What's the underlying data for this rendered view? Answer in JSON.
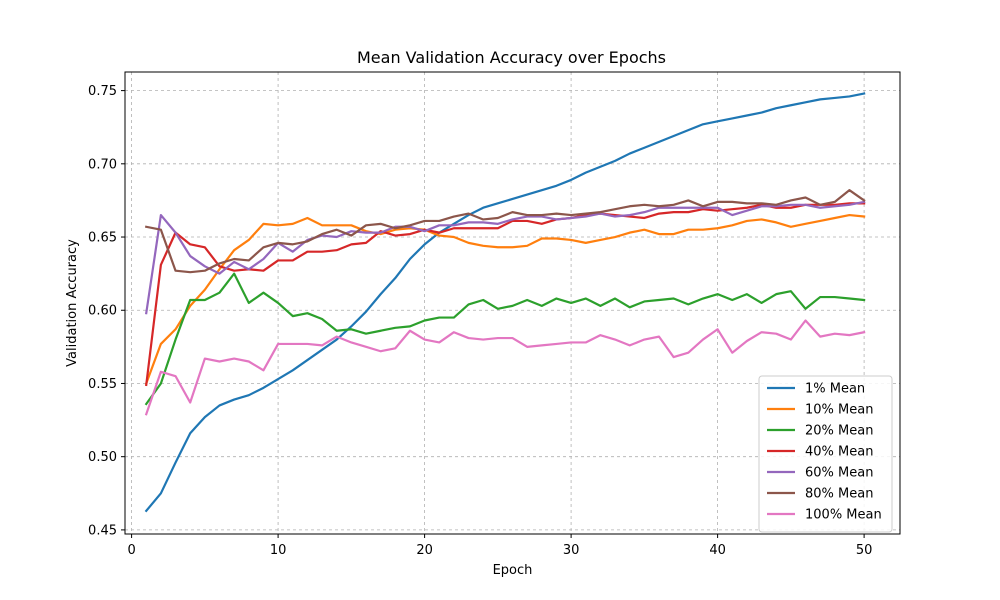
{
  "chart_data": {
    "type": "line",
    "title": "Mean Validation Accuracy over Epochs",
    "xlabel": "Epoch",
    "ylabel": "Validation Accuracy",
    "xlim": [
      -0.45,
      52.45
    ],
    "ylim": [
      0.4472,
      0.7627
    ],
    "xticks": [
      0,
      10,
      20,
      30,
      40,
      50
    ],
    "yticks": [
      0.45,
      0.5,
      0.55,
      0.6,
      0.65,
      0.7,
      0.75
    ],
    "ytick_labels": [
      "0.45",
      "0.50",
      "0.55",
      "0.60",
      "0.65",
      "0.70",
      "0.75"
    ],
    "grid": true,
    "legend_position": "lower right",
    "x": [
      1,
      2,
      3,
      4,
      5,
      6,
      7,
      8,
      9,
      10,
      11,
      12,
      13,
      14,
      15,
      16,
      17,
      18,
      19,
      20,
      21,
      22,
      23,
      24,
      25,
      26,
      27,
      28,
      29,
      30,
      31,
      32,
      33,
      34,
      35,
      36,
      37,
      38,
      39,
      40,
      41,
      42,
      43,
      44,
      45,
      46,
      47,
      48,
      49,
      50
    ],
    "series": [
      {
        "name": "1% Mean",
        "color": "#1f77b4",
        "values": [
          0.463,
          0.475,
          0.496,
          0.516,
          0.527,
          0.535,
          0.539,
          0.542,
          0.547,
          0.553,
          0.559,
          0.566,
          0.573,
          0.58,
          0.589,
          0.599,
          0.611,
          0.622,
          0.635,
          0.645,
          0.653,
          0.659,
          0.665,
          0.67,
          0.673,
          0.676,
          0.679,
          0.682,
          0.685,
          0.689,
          0.694,
          0.698,
          0.702,
          0.707,
          0.711,
          0.715,
          0.719,
          0.723,
          0.727,
          0.729,
          0.731,
          0.733,
          0.735,
          0.738,
          0.74,
          0.742,
          0.744,
          0.745,
          0.746,
          0.748
        ]
      },
      {
        "name": "10% Mean",
        "color": "#ff7f0e",
        "values": [
          0.55,
          0.577,
          0.587,
          0.603,
          0.614,
          0.628,
          0.641,
          0.648,
          0.659,
          0.658,
          0.659,
          0.663,
          0.658,
          0.658,
          0.658,
          0.654,
          0.652,
          0.655,
          0.656,
          0.655,
          0.651,
          0.65,
          0.646,
          0.644,
          0.643,
          0.643,
          0.644,
          0.649,
          0.649,
          0.648,
          0.646,
          0.648,
          0.65,
          0.653,
          0.655,
          0.652,
          0.652,
          0.655,
          0.655,
          0.656,
          0.658,
          0.661,
          0.662,
          0.66,
          0.657,
          0.659,
          0.661,
          0.663,
          0.665,
          0.664
        ]
      },
      {
        "name": "20% Mean",
        "color": "#2ca02c",
        "values": [
          0.536,
          0.55,
          0.58,
          0.607,
          0.607,
          0.612,
          0.625,
          0.605,
          0.612,
          0.605,
          0.596,
          0.598,
          0.594,
          0.586,
          0.587,
          0.584,
          0.586,
          0.588,
          0.589,
          0.593,
          0.595,
          0.595,
          0.604,
          0.607,
          0.601,
          0.603,
          0.607,
          0.603,
          0.608,
          0.605,
          0.608,
          0.603,
          0.608,
          0.602,
          0.606,
          0.607,
          0.608,
          0.604,
          0.608,
          0.611,
          0.607,
          0.611,
          0.605,
          0.611,
          0.613,
          0.601,
          0.609,
          0.609,
          0.608,
          0.607
        ]
      },
      {
        "name": "40% Mean",
        "color": "#d62728",
        "values": [
          0.549,
          0.631,
          0.653,
          0.645,
          0.643,
          0.63,
          0.627,
          0.628,
          0.627,
          0.634,
          0.634,
          0.64,
          0.64,
          0.641,
          0.645,
          0.646,
          0.654,
          0.651,
          0.652,
          0.655,
          0.653,
          0.656,
          0.656,
          0.656,
          0.656,
          0.661,
          0.661,
          0.659,
          0.662,
          0.663,
          0.665,
          0.666,
          0.665,
          0.664,
          0.663,
          0.666,
          0.667,
          0.667,
          0.669,
          0.668,
          0.669,
          0.67,
          0.672,
          0.67,
          0.67,
          0.672,
          0.672,
          0.672,
          0.673,
          0.673
        ]
      },
      {
        "name": "60% Mean",
        "color": "#9467bd",
        "values": [
          0.598,
          0.665,
          0.653,
          0.637,
          0.63,
          0.625,
          0.633,
          0.628,
          0.635,
          0.646,
          0.64,
          0.648,
          0.651,
          0.65,
          0.654,
          0.653,
          0.653,
          0.657,
          0.657,
          0.654,
          0.658,
          0.658,
          0.66,
          0.66,
          0.659,
          0.662,
          0.664,
          0.664,
          0.662,
          0.663,
          0.664,
          0.666,
          0.664,
          0.665,
          0.667,
          0.67,
          0.67,
          0.67,
          0.67,
          0.67,
          0.665,
          0.668,
          0.671,
          0.671,
          0.672,
          0.672,
          0.67,
          0.671,
          0.672,
          0.674
        ]
      },
      {
        "name": "80% Mean",
        "color": "#8c564b",
        "values": [
          0.657,
          0.655,
          0.627,
          0.626,
          0.627,
          0.632,
          0.635,
          0.634,
          0.643,
          0.646,
          0.645,
          0.647,
          0.652,
          0.655,
          0.651,
          0.658,
          0.659,
          0.656,
          0.658,
          0.661,
          0.661,
          0.664,
          0.666,
          0.662,
          0.663,
          0.667,
          0.665,
          0.665,
          0.666,
          0.665,
          0.666,
          0.667,
          0.669,
          0.671,
          0.672,
          0.671,
          0.672,
          0.675,
          0.671,
          0.674,
          0.674,
          0.673,
          0.673,
          0.672,
          0.675,
          0.677,
          0.672,
          0.674,
          0.682,
          0.675
        ]
      },
      {
        "name": "100% Mean",
        "color": "#e377c2",
        "values": [
          0.529,
          0.558,
          0.555,
          0.537,
          0.567,
          0.565,
          0.567,
          0.565,
          0.559,
          0.577,
          0.577,
          0.577,
          0.576,
          0.582,
          0.578,
          0.575,
          0.572,
          0.574,
          0.586,
          0.58,
          0.578,
          0.585,
          0.581,
          0.58,
          0.581,
          0.581,
          0.575,
          0.576,
          0.577,
          0.578,
          0.578,
          0.583,
          0.58,
          0.576,
          0.58,
          0.582,
          0.568,
          0.571,
          0.58,
          0.587,
          0.571,
          0.579,
          0.585,
          0.584,
          0.58,
          0.593,
          0.582,
          0.584,
          0.583,
          0.585
        ]
      }
    ]
  }
}
